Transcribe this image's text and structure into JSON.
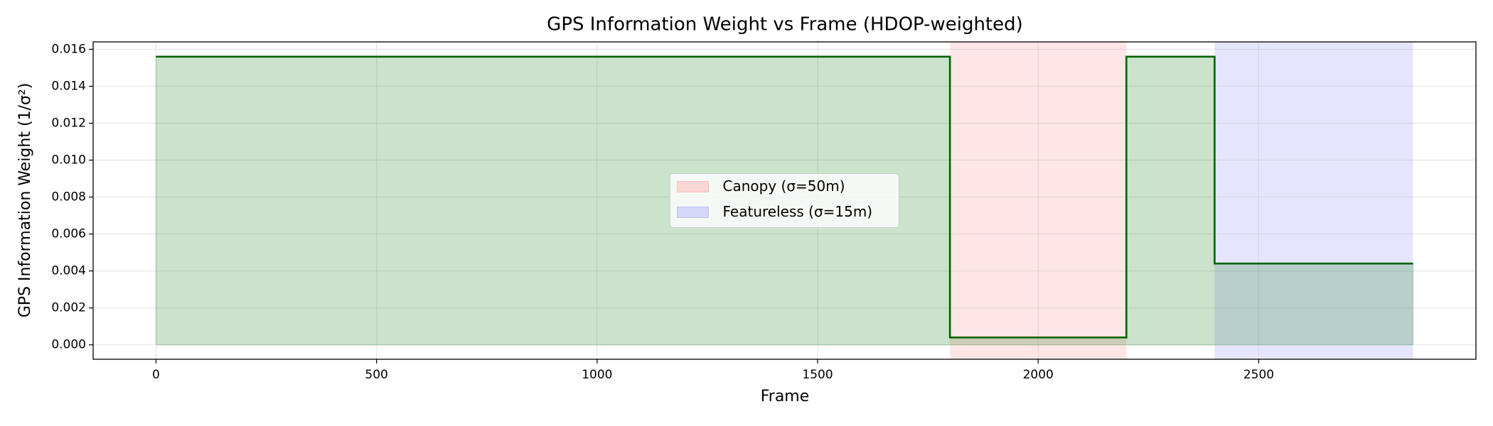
{
  "chart_data": {
    "type": "line",
    "title": "GPS Information Weight vs Frame (HDOP-weighted)",
    "x_label": "Frame",
    "y_label": "GPS Information Weight (1/σ²)",
    "series": [
      {
        "color": "#006400",
        "fill_color": "#2e8b2e",
        "x": [
          0,
          1800,
          1800,
          2200,
          2200,
          2400,
          2400,
          2850
        ],
        "values": [
          0.0156,
          0.0156,
          0.0004,
          0.0004,
          0.0156,
          0.0156,
          0.0044,
          0.0044
        ]
      }
    ],
    "spans": [
      {
        "name": "Canopy (σ=50m)",
        "start": 1800,
        "end": 2200,
        "color": "#ff9999"
      },
      {
        "name": "Featureless (σ=15m)",
        "start": 2400,
        "end": 2850,
        "color": "#9999ff"
      }
    ],
    "xlim": [
      -142.5,
      2992.5
    ],
    "ylim": [
      -0.00078,
      0.0164
    ],
    "xticks": [
      0,
      500,
      1000,
      1500,
      2000,
      2500
    ],
    "yticks": [
      {
        "value": 0,
        "label": "0.000"
      },
      0.002,
      0.004,
      0.006,
      0.008,
      {
        "value": 0.01,
        "label": "0.010"
      },
      0.012,
      0.014,
      0.016
    ],
    "grid": true,
    "legend": "center"
  }
}
